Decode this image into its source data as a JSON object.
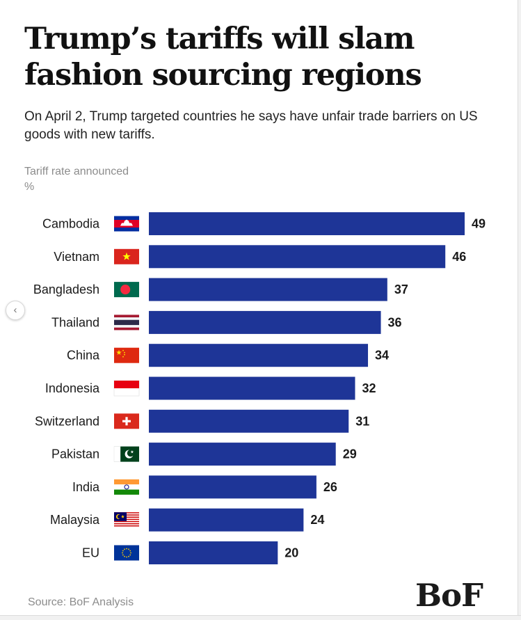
{
  "title": "Trump’s tariffs will slam fashion sourcing regions",
  "subtitle": "On April 2, Trump targeted countries he says have unfair trade barriers on US goods with new tariffs.",
  "axis_label": "Tariff rate announced",
  "unit_label": "%",
  "source": "Source: BoF Analysis",
  "logo": "BoF",
  "nav": {
    "prev_icon": "‹"
  },
  "colors": {
    "bar": "#1e3597",
    "text": "#1a1a1a",
    "muted": "#8c8c8c"
  },
  "chart_data": {
    "type": "bar",
    "orientation": "horizontal",
    "title": "Trump’s tariffs will slam fashion sourcing regions",
    "xlabel": "Tariff rate announced (%)",
    "ylabel": "",
    "xlim": [
      0,
      49
    ],
    "grid": false,
    "categories": [
      "Cambodia",
      "Vietnam",
      "Bangladesh",
      "Thailand",
      "China",
      "Indonesia",
      "Switzerland",
      "Pakistan",
      "India",
      "Malaysia",
      "EU"
    ],
    "flags": [
      "flag-cambodia",
      "flag-vietnam",
      "flag-bangladesh",
      "flag-thailand",
      "flag-china",
      "flag-indonesia",
      "flag-switzerland",
      "flag-pakistan",
      "flag-india",
      "flag-malaysia",
      "flag-eu"
    ],
    "values": [
      49,
      46,
      37,
      36,
      34,
      32,
      31,
      29,
      26,
      24,
      20
    ],
    "data_labels": [
      "49",
      "46",
      "37",
      "36",
      "34",
      "32",
      "31",
      "29",
      "26",
      "24",
      "20"
    ]
  }
}
